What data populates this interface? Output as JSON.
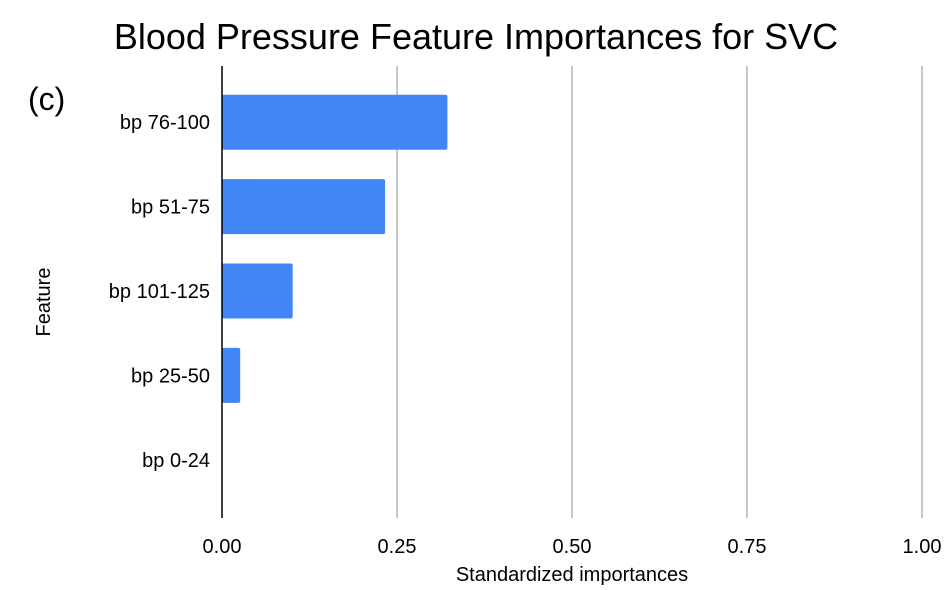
{
  "panel_label": "(c)",
  "chart_data": {
    "type": "bar",
    "orientation": "horizontal",
    "title": "Blood Pressure Feature Importances for SVC",
    "xlabel": "Standardized importances",
    "ylabel": "Feature",
    "categories": [
      "bp 76-100",
      "bp 51-75",
      "bp 101-125",
      "bp 25-50",
      "bp 0-24"
    ],
    "values": [
      0.322,
      0.233,
      0.101,
      0.026,
      0.0
    ],
    "xlim": [
      0,
      1
    ],
    "xticks": [
      0,
      0.25,
      0.5,
      0.75,
      1
    ],
    "xtick_labels": [
      "0.00",
      "0.25",
      "0.50",
      "0.75",
      "1.00"
    ],
    "grid": "vertical",
    "legend": "none",
    "bar_color": "#4285f4"
  }
}
